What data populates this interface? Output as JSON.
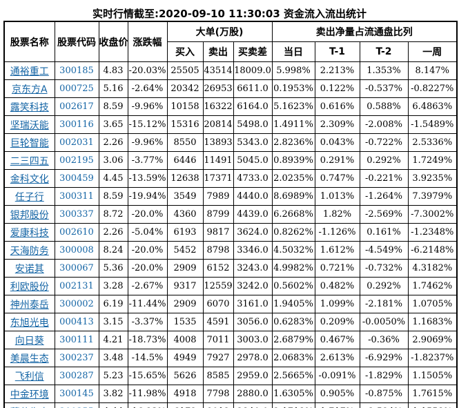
{
  "title": "实时行情截至:2020-09-10 11:30:03 资金流入流出统计",
  "colors": {
    "background": "#ffffff",
    "border": "#000000",
    "header_text": "#000000",
    "data_text": "#000000",
    "link_blue": "#1565a5"
  },
  "table": {
    "headers": {
      "stock_name": "股票名称",
      "stock_code": "股票代码",
      "close_price": "收盘价",
      "change_pct": "涨跌幅",
      "big_orders_group": "大单(万股)",
      "buy": "买入",
      "sell": "卖出",
      "buy_sell_diff": "买卖差",
      "net_sell_ratio_group": "卖出净量占流通盘比列",
      "day": "当日",
      "t_minus_1": "T-1",
      "t_minus_2": "T-2",
      "week": "一周"
    },
    "rows": [
      [
        "通裕重工",
        "300185",
        "4.83",
        "-20.03%",
        "25505",
        "43514",
        "18009.0",
        "5.998%",
        "2.213%",
        "1.353%",
        "8.147%"
      ],
      [
        "京东方A",
        "000725",
        "5.16",
        "-2.64%",
        "20342",
        "26953",
        "6611.0",
        "0.1953%",
        "0.122%",
        "-0.537%",
        "-0.8227%"
      ],
      [
        "露笑科技",
        "002617",
        "8.59",
        "-9.96%",
        "10158",
        "16322",
        "6164.0",
        "5.1623%",
        "0.616%",
        "0.588%",
        "6.4863%"
      ],
      [
        "坚瑞沃能",
        "300116",
        "3.65",
        "-15.12%",
        "15316",
        "20814",
        "5498.0",
        "1.4911%",
        "2.309%",
        "-2.008%",
        "-1.5489%"
      ],
      [
        "巨轮智能",
        "002031",
        "2.26",
        "-9.96%",
        "8550",
        "13893",
        "5343.0",
        "2.8236%",
        "0.043%",
        "-0.722%",
        "2.5336%"
      ],
      [
        "二三四五",
        "002195",
        "3.06",
        "-3.77%",
        "6446",
        "11491",
        "5045.0",
        "0.8939%",
        "0.291%",
        "0.292%",
        "1.7249%"
      ],
      [
        "金科文化",
        "300459",
        "4.45",
        "-13.59%",
        "12638",
        "17371",
        "4733.0",
        "2.0235%",
        "0.747%",
        "-0.221%",
        "3.9235%"
      ],
      [
        "任子行",
        "300311",
        "8.59",
        "-19.94%",
        "3549",
        "7989",
        "4440.0",
        "8.6989%",
        "1.013%",
        "-1.264%",
        "7.3979%"
      ],
      [
        "银邦股份",
        "300337",
        "8.72",
        "-20.0%",
        "4360",
        "8799",
        "4439.0",
        "6.2668%",
        "1.82%",
        "-2.569%",
        "-7.3002%"
      ],
      [
        "爱康科技",
        "002610",
        "2.26",
        "-5.04%",
        "6193",
        "9817",
        "3624.0",
        "0.8262%",
        "-1.126%",
        "0.161%",
        "-1.2348%"
      ],
      [
        "天海防务",
        "300008",
        "8.24",
        "-20.0%",
        "5452",
        "8798",
        "3346.0",
        "4.5032%",
        "1.612%",
        "-4.549%",
        "-6.2148%"
      ],
      [
        "安诺其",
        "300067",
        "5.36",
        "-20.0%",
        "2909",
        "6152",
        "3243.0",
        "4.9982%",
        "0.721%",
        "-0.732%",
        "4.3182%"
      ],
      [
        "利欧股份",
        "002131",
        "3.28",
        "-2.67%",
        "9317",
        "12559",
        "3242.0",
        "0.5602%",
        "0.482%",
        "0.292%",
        "1.7462%"
      ],
      [
        "神州泰岳",
        "300002",
        "6.19",
        "-11.44%",
        "2909",
        "6070",
        "3161.0",
        "1.9405%",
        "1.099%",
        "-2.181%",
        "1.0705%"
      ],
      [
        "东旭光电",
        "000413",
        "3.15",
        "-3.37%",
        "1535",
        "4591",
        "3056.0",
        "0.6283%",
        "0.209%",
        "-0.0050%",
        "1.1683%"
      ],
      [
        "向日葵",
        "300111",
        "4.21",
        "-18.73%",
        "4008",
        "7011",
        "3003.0",
        "2.6879%",
        "0.467%",
        "-0.36%",
        "2.9069%"
      ],
      [
        "美晨生态",
        "300237",
        "3.48",
        "-14.5%",
        "4949",
        "7927",
        "2978.0",
        "2.0683%",
        "2.613%",
        "-6.929%",
        "-1.8237%"
      ],
      [
        "飞利信",
        "300287",
        "5.23",
        "-15.65%",
        "5626",
        "8585",
        "2959.0",
        "2.5665%",
        "-0.091%",
        "-1.829%",
        "1.1505%"
      ],
      [
        "中金环境",
        "300145",
        "3.82",
        "-11.98%",
        "4918",
        "7798",
        "2880.0",
        "1.6305%",
        "0.905%",
        "-0.875%",
        "1.7615%"
      ],
      [
        "蒙草生态",
        "300355",
        "4.44",
        "-16.23%",
        "6172",
        "9012",
        "2840.0",
        "2.1718%",
        "1.717%",
        "-2.524%",
        "1.1558%"
      ]
    ]
  }
}
